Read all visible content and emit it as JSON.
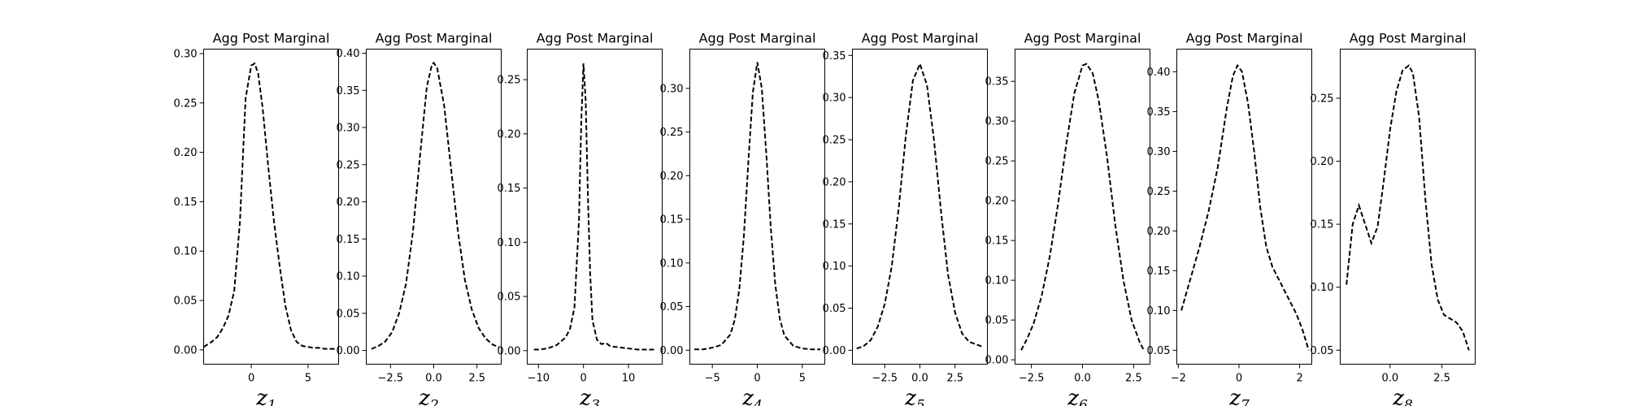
{
  "chart_data": [
    {
      "type": "line",
      "title": "Agg Post Marginal",
      "xlabel": "z",
      "xlabel_sub": "1",
      "xlim": [
        -4.2,
        7.7
      ],
      "ylim": [
        -0.0145,
        0.3045
      ],
      "xticks": [
        0,
        5
      ],
      "xtick_labels": [
        "0",
        "5"
      ],
      "yticks": [
        0,
        0.05,
        0.1,
        0.15,
        0.2,
        0.25,
        0.3
      ],
      "ytick_labels": [
        "0.00",
        "0.05",
        "0.10",
        "0.15",
        "0.20",
        "0.25",
        "0.30"
      ],
      "series": [
        {
          "style": "dashed",
          "x": [
            -4.2,
            -3.5,
            -3,
            -2.5,
            -2,
            -1.5,
            -1,
            -0.5,
            0,
            0.3,
            0.6,
            1,
            1.5,
            2,
            2.5,
            3,
            3.5,
            4,
            4.5,
            5,
            5.5,
            6,
            6.5,
            7,
            7.5
          ],
          "y": [
            0.003,
            0.008,
            0.013,
            0.022,
            0.035,
            0.06,
            0.13,
            0.255,
            0.288,
            0.29,
            0.28,
            0.245,
            0.185,
            0.13,
            0.085,
            0.045,
            0.02,
            0.008,
            0.004,
            0.003,
            0.002,
            0.002,
            0.001,
            0.001,
            0.001
          ]
        }
      ]
    },
    {
      "type": "line",
      "title": "Agg Post Marginal",
      "xlabel": "z",
      "xlabel_sub": "2",
      "xlim": [
        -3.9,
        3.9
      ],
      "ylim": [
        -0.0185,
        0.4055
      ],
      "xticks": [
        -2.5,
        0,
        2.5
      ],
      "xtick_labels": [
        "−2.5",
        "0.0",
        "2.5"
      ],
      "yticks": [
        0,
        0.05,
        0.1,
        0.15,
        0.2,
        0.25,
        0.3,
        0.35,
        0.4
      ],
      "ytick_labels": [
        "0.00",
        "0.05",
        "0.10",
        "0.15",
        "0.20",
        "0.25",
        "0.30",
        "0.35",
        "0.40"
      ],
      "series": [
        {
          "style": "dashed",
          "x": [
            -3.6,
            -3.2,
            -2.8,
            -2.4,
            -2,
            -1.6,
            -1.2,
            -0.8,
            -0.4,
            -0.1,
            0,
            0.2,
            0.6,
            1,
            1.4,
            1.8,
            2.2,
            2.6,
            3,
            3.4,
            3.8
          ],
          "y": [
            0.002,
            0.006,
            0.012,
            0.025,
            0.05,
            0.09,
            0.16,
            0.26,
            0.355,
            0.385,
            0.387,
            0.38,
            0.33,
            0.245,
            0.16,
            0.095,
            0.055,
            0.03,
            0.016,
            0.008,
            0.004
          ]
        }
      ]
    },
    {
      "type": "line",
      "title": "Agg Post Marginal",
      "xlabel": "z",
      "xlabel_sub": "3",
      "xlim": [
        -12.5,
        17.5
      ],
      "ylim": [
        -0.0125,
        0.2782
      ],
      "xticks": [
        -10,
        0,
        10
      ],
      "xtick_labels": [
        "−10",
        "0",
        "10"
      ],
      "yticks": [
        0,
        0.05,
        0.1,
        0.15,
        0.2,
        0.25
      ],
      "ytick_labels": [
        "0.00",
        "0.05",
        "0.10",
        "0.15",
        "0.20",
        "0.25"
      ],
      "series": [
        {
          "style": "dashed",
          "x": [
            -11,
            -10,
            -8,
            -6,
            -4,
            -3,
            -2,
            -1,
            -0.5,
            0,
            0.5,
            1,
            1.5,
            2,
            3,
            4,
            5,
            6,
            8,
            10,
            12,
            14,
            16
          ],
          "y": [
            0.001,
            0.001,
            0.002,
            0.005,
            0.012,
            0.02,
            0.04,
            0.12,
            0.21,
            0.265,
            0.23,
            0.14,
            0.07,
            0.028,
            0.01,
            0.006,
            0.007,
            0.004,
            0.003,
            0.002,
            0.001,
            0.001,
            0.001
          ]
        }
      ]
    },
    {
      "type": "line",
      "title": "Agg Post Marginal",
      "xlabel": "z",
      "xlabel_sub": "4",
      "xlim": [
        -7.5,
        7.5
      ],
      "ylim": [
        -0.016,
        0.345
      ],
      "xticks": [
        -5,
        0,
        5
      ],
      "xtick_labels": [
        "−5",
        "0",
        "5"
      ],
      "yticks": [
        0,
        0.05,
        0.1,
        0.15,
        0.2,
        0.25,
        0.3
      ],
      "ytick_labels": [
        "0.00",
        "0.05",
        "0.10",
        "0.15",
        "0.20",
        "0.25",
        "0.30"
      ],
      "series": [
        {
          "style": "dashed",
          "x": [
            -7,
            -6,
            -5,
            -4,
            -3,
            -2.5,
            -2,
            -1.5,
            -1,
            -0.5,
            0,
            0.5,
            1,
            1.5,
            2,
            2.5,
            3,
            4,
            5,
            6,
            7
          ],
          "y": [
            0.001,
            0.001,
            0.003,
            0.006,
            0.018,
            0.035,
            0.07,
            0.13,
            0.215,
            0.295,
            0.33,
            0.3,
            0.225,
            0.14,
            0.075,
            0.036,
            0.017,
            0.005,
            0.002,
            0.001,
            0.001
          ]
        }
      ]
    },
    {
      "type": "line",
      "title": "Agg Post Marginal",
      "xlabel": "z",
      "xlabel_sub": "5",
      "xlim": [
        -4.8,
        4.8
      ],
      "ylim": [
        -0.0165,
        0.3575
      ],
      "xticks": [
        -2.5,
        0,
        2.5
      ],
      "xtick_labels": [
        "−2.5",
        "0.0",
        "2.5"
      ],
      "yticks": [
        0,
        0.05,
        0.1,
        0.15,
        0.2,
        0.25,
        0.3,
        0.35
      ],
      "ytick_labels": [
        "0.00",
        "0.05",
        "0.10",
        "0.15",
        "0.20",
        "0.25",
        "0.30",
        "0.35"
      ],
      "series": [
        {
          "style": "dashed",
          "x": [
            -4.5,
            -4,
            -3.5,
            -3,
            -2.5,
            -2,
            -1.5,
            -1,
            -0.5,
            0,
            0.5,
            1,
            1.5,
            2,
            2.5,
            3,
            3.5,
            4,
            4.5
          ],
          "y": [
            0.002,
            0.005,
            0.012,
            0.028,
            0.055,
            0.1,
            0.17,
            0.255,
            0.32,
            0.34,
            0.315,
            0.25,
            0.165,
            0.09,
            0.045,
            0.02,
            0.01,
            0.007,
            0.004
          ]
        }
      ]
    },
    {
      "type": "line",
      "title": "Agg Post Marginal",
      "xlabel": "z",
      "xlabel_sub": "6",
      "xlim": [
        -3.3,
        3.3
      ],
      "ylim": [
        -0.0055,
        0.3905
      ],
      "xticks": [
        -2.5,
        0,
        2.5
      ],
      "xtick_labels": [
        "−2.5",
        "0.0",
        "2.5"
      ],
      "yticks": [
        0,
        0.05,
        0.1,
        0.15,
        0.2,
        0.25,
        0.3,
        0.35
      ],
      "ytick_labels": [
        "0.00",
        "0.05",
        "0.10",
        "0.15",
        "0.20",
        "0.25",
        "0.30",
        "0.35"
      ],
      "series": [
        {
          "style": "dashed",
          "x": [
            -3,
            -2.7,
            -2.4,
            -2,
            -1.6,
            -1.2,
            -0.8,
            -0.4,
            0,
            0.2,
            0.5,
            0.8,
            1.2,
            1.6,
            2,
            2.4,
            2.8,
            3
          ],
          "y": [
            0.012,
            0.027,
            0.045,
            0.08,
            0.13,
            0.195,
            0.27,
            0.335,
            0.37,
            0.372,
            0.36,
            0.325,
            0.255,
            0.17,
            0.1,
            0.05,
            0.022,
            0.012
          ]
        }
      ]
    },
    {
      "type": "line",
      "title": "Agg Post Marginal",
      "xlabel": "z",
      "xlabel_sub": "7",
      "xlim": [
        -2.05,
        2.4
      ],
      "ylim": [
        0.0325,
        0.4285
      ],
      "xticks": [
        -2,
        0,
        2
      ],
      "xtick_labels": [
        "−2",
        "0",
        "2"
      ],
      "yticks": [
        0.05,
        0.1,
        0.15,
        0.2,
        0.25,
        0.3,
        0.35,
        0.4
      ],
      "ytick_labels": [
        "0.05",
        "0.10",
        "0.15",
        "0.20",
        "0.25",
        "0.30",
        "0.35",
        "0.40"
      ],
      "series": [
        {
          "style": "dashed",
          "x": [
            -1.9,
            -1.6,
            -1.3,
            -1,
            -0.7,
            -0.4,
            -0.2,
            -0.05,
            0.1,
            0.3,
            0.5,
            0.7,
            0.9,
            1.1,
            1.3,
            1.5,
            1.7,
            1.9,
            2.1,
            2.3
          ],
          "y": [
            0.1,
            0.14,
            0.18,
            0.225,
            0.28,
            0.355,
            0.395,
            0.408,
            0.4,
            0.36,
            0.3,
            0.23,
            0.18,
            0.155,
            0.14,
            0.125,
            0.11,
            0.095,
            0.075,
            0.05
          ]
        }
      ]
    },
    {
      "type": "line",
      "title": "Agg Post Marginal",
      "xlabel": "z",
      "xlabel_sub": "8",
      "xlim": [
        -2.4,
        4.1
      ],
      "ylim": [
        0.0389,
        0.289
      ],
      "xticks": [
        0,
        2.5
      ],
      "xtick_labels": [
        "0.0",
        "2.5"
      ],
      "yticks": [
        0.05,
        0.1,
        0.15,
        0.2,
        0.25
      ],
      "ytick_labels": [
        "0.05",
        "0.10",
        "0.15",
        "0.20",
        "0.25"
      ],
      "series": [
        {
          "style": "dashed",
          "x": [
            -2.1,
            -1.8,
            -1.5,
            -1.2,
            -0.9,
            -0.6,
            -0.3,
            0,
            0.3,
            0.6,
            0.9,
            1.1,
            1.4,
            1.7,
            2,
            2.3,
            2.6,
            2.9,
            3.2,
            3.5,
            3.8
          ],
          "y": [
            0.102,
            0.15,
            0.165,
            0.15,
            0.135,
            0.148,
            0.185,
            0.225,
            0.255,
            0.272,
            0.276,
            0.27,
            0.235,
            0.17,
            0.118,
            0.09,
            0.078,
            0.075,
            0.072,
            0.065,
            0.05
          ]
        }
      ]
    }
  ]
}
